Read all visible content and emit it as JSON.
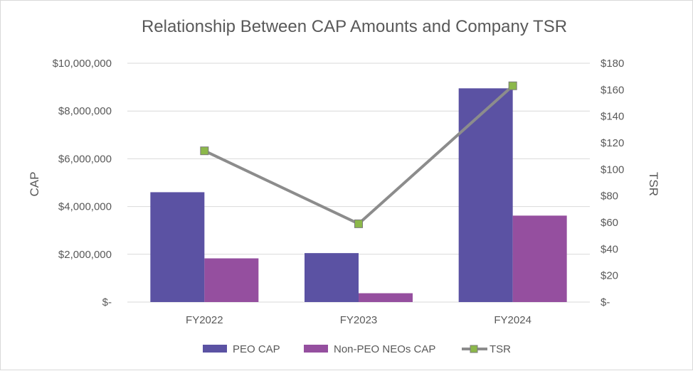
{
  "chart_data": {
    "type": "bar",
    "title": "Relationship Between CAP Amounts and Company TSR",
    "categories": [
      "FY2022",
      "FY2023",
      "FY2024"
    ],
    "series": [
      {
        "name": "PEO CAP",
        "kind": "bar",
        "axis": "left",
        "color": "#5b52a3",
        "values": [
          4600000,
          2050000,
          8950000
        ]
      },
      {
        "name": "Non-PEO NEOs CAP",
        "kind": "bar",
        "axis": "left",
        "color": "#954f9f",
        "values": [
          1830000,
          370000,
          3620000
        ]
      },
      {
        "name": "TSR",
        "kind": "line",
        "axis": "right",
        "color": "#8c8c8c",
        "marker_color": "#8cb84a",
        "values": [
          114,
          59,
          163
        ]
      }
    ],
    "ylabel_left": "CAP",
    "ylabel_right": "TSR",
    "ylim_left": [
      0,
      10000000
    ],
    "ylim_right": [
      0,
      180
    ],
    "yticks_left": [
      "$-",
      "$2,000,000",
      "$4,000,000",
      "$6,000,000",
      "$8,000,000",
      "$10,000,000"
    ],
    "yticks_right": [
      "$-",
      "$20",
      "$40",
      "$60",
      "$80",
      "$100",
      "$120",
      "$140",
      "$160",
      "$180"
    ],
    "gridlines": true,
    "legend": {
      "position": "bottom",
      "labels": [
        "PEO CAP",
        "Non-PEO NEOs CAP",
        "TSR"
      ]
    }
  }
}
